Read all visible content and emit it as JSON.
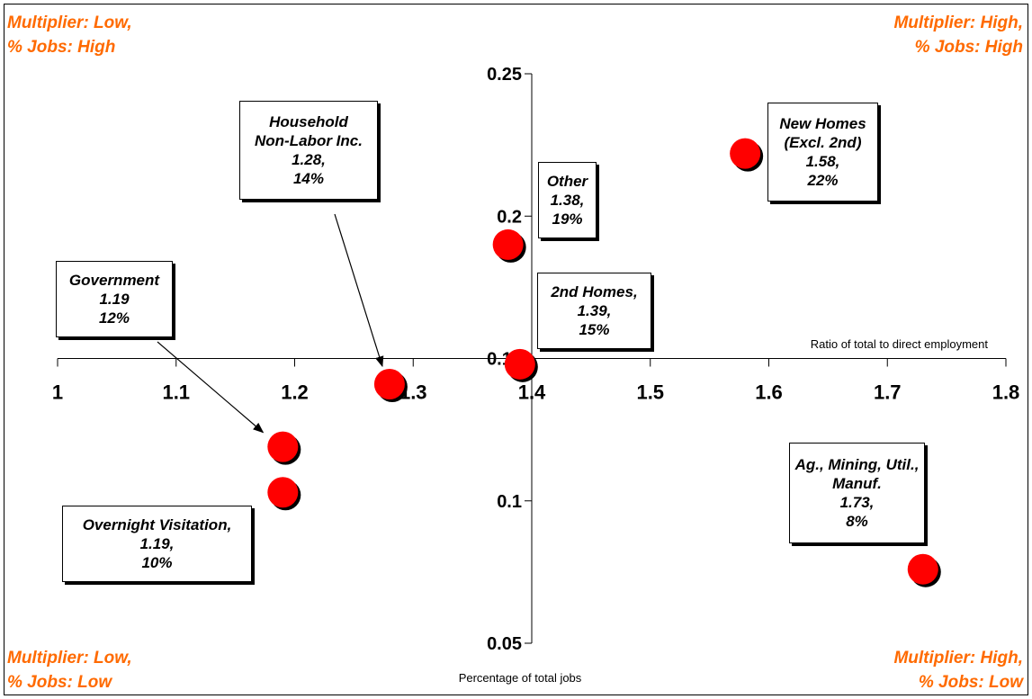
{
  "chart_data": {
    "type": "scatter",
    "title": "",
    "xlabel": "Ratio of total to direct employment",
    "ylabel": "Percentage of total jobs",
    "xlim": [
      1.0,
      1.8
    ],
    "ylim": [
      0.05,
      0.25
    ],
    "x_ticks": [
      "1",
      "1.1",
      "1.2",
      "1.3",
      "1.4",
      "1.5",
      "1.6",
      "1.7",
      "1.8"
    ],
    "y_ticks": [
      "0.05",
      "0.1",
      "0.15",
      "0.2",
      "0.25"
    ],
    "axis_crossing": {
      "x": 1.4,
      "y": 0.15
    },
    "grid": false,
    "marker_color": "#ff0000",
    "points": [
      {
        "label": "New Homes (Excl. 2nd)",
        "x": 1.58,
        "y": 0.222
      },
      {
        "label": "Other",
        "x": 1.38,
        "y": 0.19
      },
      {
        "label": "2nd Homes",
        "x": 1.39,
        "y": 0.148
      },
      {
        "label": "Household Non-Labor Inc.",
        "x": 1.28,
        "y": 0.141
      },
      {
        "label": "Government",
        "x": 1.19,
        "y": 0.119
      },
      {
        "label": "Overnight Visitation",
        "x": 1.19,
        "y": 0.103
      },
      {
        "label": "Ag., Mining, Util., Manuf.",
        "x": 1.73,
        "y": 0.076
      }
    ],
    "annotations": [
      {
        "id": "household",
        "text": "Household\nNon-Labor Inc.\n1.28,\n14%"
      },
      {
        "id": "new-homes",
        "text": "New Homes\n(Excl. 2nd)\n1.58,\n22%"
      },
      {
        "id": "other",
        "text": "Other\n1.38,\n19%"
      },
      {
        "id": "government",
        "text": "Government\n1.19\n12%"
      },
      {
        "id": "second-homes",
        "text": "2nd Homes,\n1.39,\n15%"
      },
      {
        "id": "overnight",
        "text": "Overnight Visitation,\n1.19,\n10%"
      },
      {
        "id": "ag-mining",
        "text": "Ag., Mining, Util.,\nManuf.\n1.73,\n8%"
      }
    ],
    "quadrant_labels": {
      "top_left": "Multiplier: Low,\n% Jobs: High",
      "top_right": "Multiplier: High,\n% Jobs: High",
      "bottom_left": "Multiplier: Low,\n% Jobs: Low",
      "bottom_right": "Multiplier: High,\n% Jobs: Low"
    },
    "quadrant_label_color": "#ff6a00"
  }
}
